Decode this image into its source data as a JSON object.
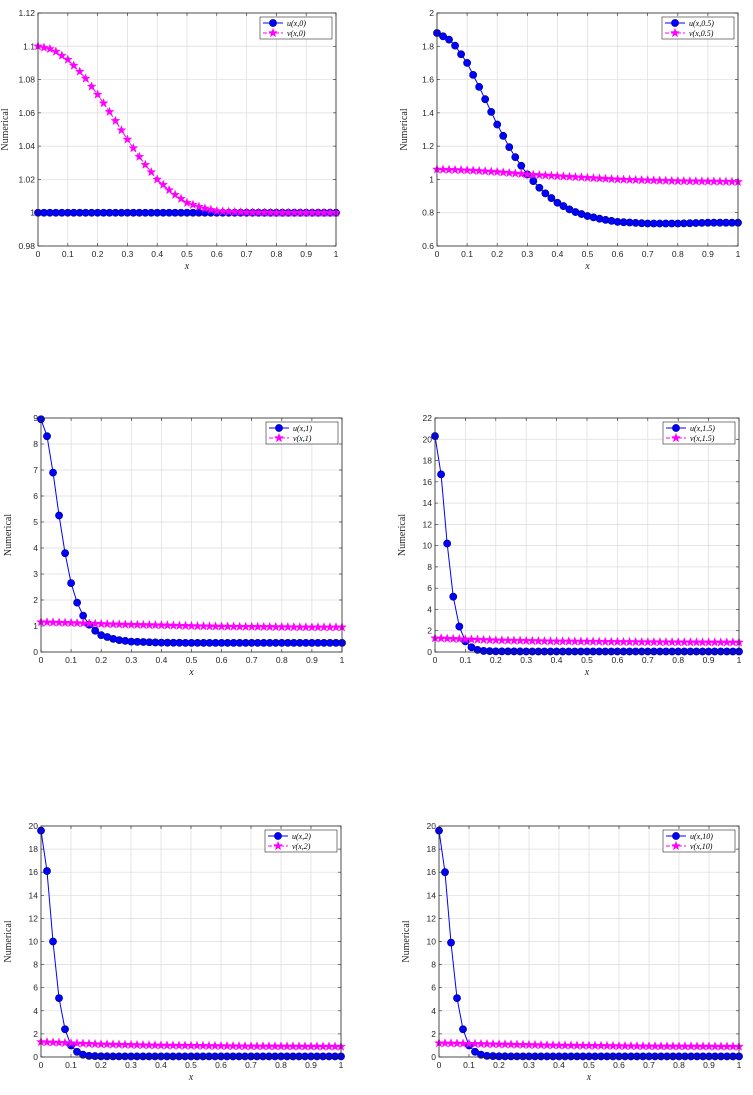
{
  "chart_data": [
    {
      "type": "line",
      "ylabel": "Numerical",
      "xlabel": "x",
      "xlim": [
        0,
        1
      ],
      "ylim": [
        0.98,
        1.12
      ],
      "xticks": [
        "0",
        "0.1",
        "0.2",
        "0.3",
        "0.4",
        "0.5",
        "0.6",
        "0.7",
        "0.8",
        "0.9",
        "1"
      ],
      "yticks": [
        "0.98",
        "1",
        "1.02",
        "1.04",
        "1.06",
        "1.08",
        "1.1",
        "1.12"
      ],
      "grid": true,
      "legend_position": "top-right",
      "series": [
        {
          "name": "u(x,0)",
          "color": "#0000ff",
          "marker": "circle",
          "line": "solid",
          "x_points": [
            0,
            0.1,
            0.2,
            0.3,
            0.4,
            0.5,
            0.6,
            0.7,
            0.8,
            0.9,
            1
          ],
          "y_points": [
            1,
            1,
            1,
            1,
            1,
            1,
            1,
            1,
            1,
            1,
            1
          ]
        },
        {
          "name": "v(x,0)",
          "color": "#ff00ff",
          "marker": "star",
          "line": "dashed",
          "x_points": [
            0,
            0.05,
            0.1,
            0.15,
            0.2,
            0.25,
            0.3,
            0.35,
            0.4,
            0.45,
            0.5,
            0.55,
            0.6,
            0.65,
            0.7,
            0.8,
            0.9,
            1
          ],
          "y_points": [
            1.1,
            1.098,
            1.092,
            1.083,
            1.071,
            1.058,
            1.044,
            1.031,
            1.02,
            1.012,
            1.006,
            1.003,
            1.001,
            1.0005,
            1.0002,
            1,
            1,
            1
          ]
        }
      ]
    },
    {
      "type": "line",
      "ylabel": "Numerical",
      "xlabel": "x",
      "xlim": [
        0,
        1
      ],
      "ylim": [
        0.6,
        2
      ],
      "xticks": [
        "0",
        "0.1",
        "0.2",
        "0.3",
        "0.4",
        "0.5",
        "0.6",
        "0.7",
        "0.8",
        "0.9",
        "1"
      ],
      "yticks": [
        "0.6",
        "0.8",
        "1",
        "1.2",
        "1.4",
        "1.6",
        "1.8",
        "2"
      ],
      "grid": true,
      "legend_position": "top-right",
      "series": [
        {
          "name": "u(x,0.5)",
          "color": "#0000ff",
          "marker": "circle",
          "line": "solid",
          "x_points": [
            0,
            0.05,
            0.1,
            0.15,
            0.2,
            0.25,
            0.3,
            0.35,
            0.4,
            0.45,
            0.5,
            0.55,
            0.6,
            0.7,
            0.8,
            0.9,
            1
          ],
          "y_points": [
            1.88,
            1.83,
            1.7,
            1.52,
            1.33,
            1.16,
            1.03,
            0.93,
            0.86,
            0.81,
            0.78,
            0.76,
            0.745,
            0.735,
            0.735,
            0.74,
            0.74
          ]
        },
        {
          "name": "v(x,0.5)",
          "color": "#ff00ff",
          "marker": "star",
          "line": "dashed",
          "x_points": [
            0,
            0.1,
            0.2,
            0.3,
            0.4,
            0.5,
            0.6,
            0.7,
            0.8,
            0.9,
            1
          ],
          "y_points": [
            1.06,
            1.055,
            1.045,
            1.03,
            1.02,
            1.01,
            1.0,
            0.995,
            0.99,
            0.988,
            0.985
          ]
        }
      ]
    },
    {
      "type": "line",
      "ylabel": "Numerical",
      "xlabel": "x",
      "xlim": [
        0,
        1
      ],
      "ylim": [
        0,
        9
      ],
      "xticks": [
        "0",
        "0.1",
        "0.2",
        "0.3",
        "0.4",
        "0.5",
        "0.6",
        "0.7",
        "0.8",
        "0.9",
        "1"
      ],
      "yticks": [
        "0",
        "1",
        "2",
        "3",
        "4",
        "5",
        "6",
        "7",
        "8",
        "9"
      ],
      "grid": true,
      "legend_position": "top-right",
      "series": [
        {
          "name": "u(x,1)",
          "color": "#0000ff",
          "marker": "circle",
          "line": "solid",
          "x_points": [
            0,
            0.02,
            0.04,
            0.06,
            0.08,
            0.1,
            0.12,
            0.14,
            0.16,
            0.18,
            0.2,
            0.25,
            0.3,
            0.4,
            0.5,
            0.6,
            0.7,
            0.8,
            0.9,
            1
          ],
          "y_points": [
            8.95,
            8.3,
            6.9,
            5.25,
            3.8,
            2.65,
            1.9,
            1.4,
            1.05,
            0.82,
            0.65,
            0.47,
            0.4,
            0.36,
            0.35,
            0.35,
            0.35,
            0.35,
            0.35,
            0.35
          ]
        },
        {
          "name": "v(x,1)",
          "color": "#ff00ff",
          "marker": "star",
          "line": "dashed",
          "x_points": [
            0,
            0.1,
            0.2,
            0.3,
            0.4,
            0.5,
            0.6,
            0.7,
            0.8,
            0.9,
            1
          ],
          "y_points": [
            1.15,
            1.12,
            1.08,
            1.05,
            1.03,
            1.0,
            0.98,
            0.97,
            0.96,
            0.95,
            0.95
          ]
        }
      ]
    },
    {
      "type": "line",
      "ylabel": "Numerical",
      "xlabel": "x",
      "xlim": [
        0,
        1
      ],
      "ylim": [
        0,
        22
      ],
      "xticks": [
        "0",
        "0.1",
        "0.2",
        "0.3",
        "0.4",
        "0.5",
        "0.6",
        "0.7",
        "0.8",
        "0.9",
        "1"
      ],
      "yticks": [
        "0",
        "2",
        "4",
        "6",
        "8",
        "10",
        "12",
        "14",
        "16",
        "18",
        "20",
        "22"
      ],
      "grid": true,
      "legend_position": "top-right",
      "series": [
        {
          "name": "u(x,1.5)",
          "color": "#0000ff",
          "marker": "circle",
          "line": "solid",
          "x_points": [
            0,
            0.02,
            0.04,
            0.06,
            0.08,
            0.1,
            0.12,
            0.14,
            0.16,
            0.2,
            0.3,
            0.4,
            0.5,
            0.6,
            0.7,
            0.8,
            0.9,
            1
          ],
          "y_points": [
            20.3,
            16.7,
            10.2,
            5.2,
            2.4,
            1.0,
            0.45,
            0.2,
            0.1,
            0.06,
            0.05,
            0.05,
            0.05,
            0.05,
            0.05,
            0.05,
            0.05,
            0.05
          ]
        },
        {
          "name": "v(x,1.5)",
          "color": "#ff00ff",
          "marker": "star",
          "line": "dashed",
          "x_points": [
            0,
            0.1,
            0.2,
            0.3,
            0.4,
            0.5,
            0.6,
            0.7,
            0.8,
            0.9,
            1
          ],
          "y_points": [
            1.3,
            1.2,
            1.1,
            1.05,
            1.0,
            0.98,
            0.95,
            0.93,
            0.92,
            0.91,
            0.9
          ]
        }
      ]
    },
    {
      "type": "line",
      "ylabel": "Numerical",
      "xlabel": "x",
      "xlim": [
        0,
        1
      ],
      "ylim": [
        0,
        20
      ],
      "xticks": [
        "0",
        "0.1",
        "0.2",
        "0.3",
        "0.4",
        "0.5",
        "0.6",
        "0.7",
        "0.8",
        "0.9",
        "1"
      ],
      "yticks": [
        "0",
        "2",
        "4",
        "6",
        "8",
        "10",
        "12",
        "14",
        "16",
        "18",
        "20"
      ],
      "grid": true,
      "legend_position": "top-right",
      "series": [
        {
          "name": "u(x,2)",
          "color": "#0000ff",
          "marker": "circle",
          "line": "solid",
          "x_points": [
            0,
            0.02,
            0.04,
            0.06,
            0.08,
            0.1,
            0.12,
            0.14,
            0.16,
            0.2,
            0.3,
            0.4,
            0.5,
            0.6,
            0.7,
            0.8,
            0.9,
            1
          ],
          "y_points": [
            19.6,
            16.1,
            10.0,
            5.1,
            2.4,
            1.0,
            0.45,
            0.2,
            0.1,
            0.06,
            0.05,
            0.05,
            0.05,
            0.05,
            0.05,
            0.05,
            0.05,
            0.05
          ]
        },
        {
          "name": "v(x,2)",
          "color": "#ff00ff",
          "marker": "star",
          "line": "dashed",
          "x_points": [
            0,
            0.1,
            0.2,
            0.3,
            0.4,
            0.5,
            0.6,
            0.7,
            0.8,
            0.9,
            1
          ],
          "y_points": [
            1.3,
            1.2,
            1.1,
            1.05,
            1.0,
            0.98,
            0.95,
            0.93,
            0.92,
            0.91,
            0.9
          ]
        }
      ]
    },
    {
      "type": "line",
      "ylabel": "Numerical",
      "xlabel": "x",
      "xlim": [
        0,
        1
      ],
      "ylim": [
        0,
        20
      ],
      "xticks": [
        "0",
        "0.1",
        "0.2",
        "0.3",
        "0.4",
        "0.5",
        "0.6",
        "0.7",
        "0.8",
        "0.9",
        "1"
      ],
      "yticks": [
        "0",
        "2",
        "4",
        "6",
        "8",
        "10",
        "12",
        "14",
        "16",
        "18",
        "20"
      ],
      "grid": true,
      "legend_position": "top-right",
      "series": [
        {
          "name": "u(x,10)",
          "color": "#0000ff",
          "marker": "circle",
          "line": "solid",
          "x_points": [
            0,
            0.02,
            0.04,
            0.06,
            0.08,
            0.1,
            0.12,
            0.14,
            0.16,
            0.2,
            0.3,
            0.4,
            0.5,
            0.6,
            0.7,
            0.8,
            0.9,
            1
          ],
          "y_points": [
            19.6,
            16.0,
            9.9,
            5.1,
            2.4,
            1.0,
            0.45,
            0.2,
            0.1,
            0.06,
            0.05,
            0.05,
            0.05,
            0.05,
            0.05,
            0.05,
            0.05,
            0.05
          ]
        },
        {
          "name": "v(x,10)",
          "color": "#ff00ff",
          "marker": "star",
          "line": "dashed",
          "x_points": [
            0,
            0.1,
            0.2,
            0.3,
            0.4,
            0.5,
            0.6,
            0.7,
            0.8,
            0.9,
            1
          ],
          "y_points": [
            1.2,
            1.15,
            1.1,
            1.05,
            1.0,
            0.98,
            0.95,
            0.93,
            0.92,
            0.91,
            0.9
          ]
        }
      ]
    }
  ]
}
